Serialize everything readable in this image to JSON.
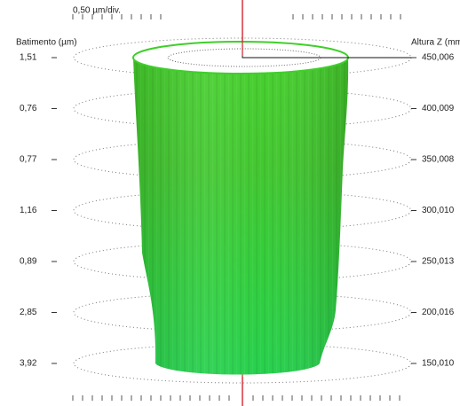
{
  "scale_label": "0,50 µm/div.",
  "left_axis_title": "Batimento (µm)",
  "right_axis_title": "Altura Z (mm",
  "levels": [
    {
      "runout": "1,51",
      "height": "450,006"
    },
    {
      "runout": "0,76",
      "height": "400,009"
    },
    {
      "runout": "0,77",
      "height": "350,008"
    },
    {
      "runout": "1,16",
      "height": "300,010"
    },
    {
      "runout": "0,89",
      "height": "250,013"
    },
    {
      "runout": "2,85",
      "height": "200,016"
    },
    {
      "runout": "3,92",
      "height": "150,010"
    }
  ]
}
